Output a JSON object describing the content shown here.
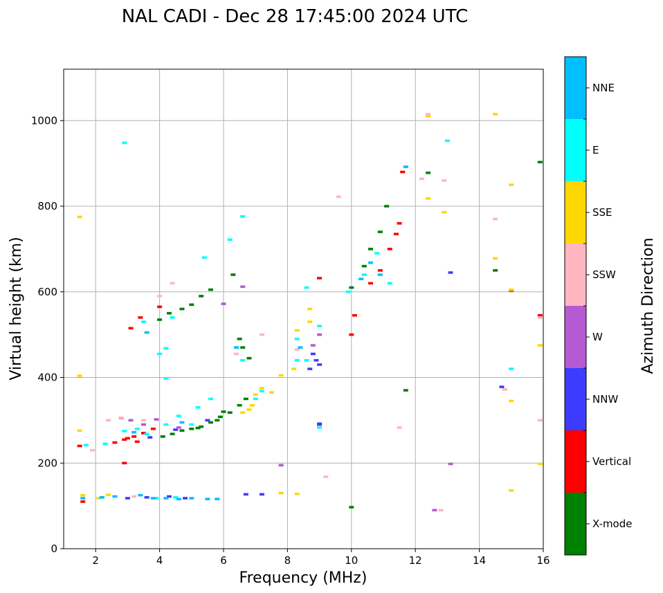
{
  "chart_data": {
    "type": "scatter",
    "title": "NAL CADI - Dec 28 17:45:00 2024 UTC",
    "xlabel": "Frequency (MHz)",
    "ylabel": "Virtual height (km)",
    "xlim": [
      1,
      16
    ],
    "ylim": [
      0,
      1120
    ],
    "xticks": [
      2,
      4,
      6,
      8,
      10,
      12,
      14,
      16
    ],
    "yticks": [
      0,
      200,
      400,
      600,
      800,
      1000
    ],
    "xtick_labels": [
      "2",
      "4",
      "6",
      "8",
      "10",
      "12",
      "14",
      "16"
    ],
    "ytick_labels": [
      "0",
      "200",
      "400",
      "600",
      "800",
      "1000"
    ],
    "grid": true,
    "colorbar": {
      "label": "Azimuth Direction",
      "categories": [
        "X-mode",
        "Vertical",
        "NNW",
        "W",
        "SSW",
        "SSE",
        "E",
        "NNE"
      ],
      "colors": [
        "#008000",
        "#ff0000",
        "#3c3cff",
        "#b45ad2",
        "#ffb6c1",
        "#ffd700",
        "#00ffff",
        "#00bfff"
      ]
    },
    "series": [
      {
        "name": "X-mode",
        "points": [
          [
            4.1,
            262
          ],
          [
            4.4,
            268
          ],
          [
            4.7,
            276
          ],
          [
            5.0,
            280
          ],
          [
            5.3,
            285
          ],
          [
            5.6,
            295
          ],
          [
            5.9,
            308
          ],
          [
            6.2,
            318
          ],
          [
            6.5,
            335
          ],
          [
            6.7,
            350
          ],
          [
            4.0,
            535
          ],
          [
            4.3,
            550
          ],
          [
            4.7,
            560
          ],
          [
            5.0,
            570
          ],
          [
            5.3,
            590
          ],
          [
            5.6,
            605
          ],
          [
            6.3,
            640
          ],
          [
            6.5,
            490
          ],
          [
            6.6,
            470
          ],
          [
            6.8,
            445
          ],
          [
            10.0,
            97
          ],
          [
            10.0,
            610
          ],
          [
            10.4,
            660
          ],
          [
            10.6,
            700
          ],
          [
            10.9,
            740
          ],
          [
            11.1,
            800
          ],
          [
            11.7,
            370
          ],
          [
            12.4,
            878
          ],
          [
            14.5,
            650
          ],
          [
            15.9,
            903
          ],
          [
            6.0,
            320
          ],
          [
            5.8,
            300
          ],
          [
            5.2,
            282
          ]
        ]
      },
      {
        "name": "Vertical",
        "points": [
          [
            1.5,
            240
          ],
          [
            1.6,
            110
          ],
          [
            2.6,
            248
          ],
          [
            2.9,
            255
          ],
          [
            3.2,
            262
          ],
          [
            3.5,
            270
          ],
          [
            3.8,
            280
          ],
          [
            3.1,
            515
          ],
          [
            3.4,
            540
          ],
          [
            4.0,
            565
          ],
          [
            2.9,
            200
          ],
          [
            9.0,
            632
          ],
          [
            10.0,
            500
          ],
          [
            10.1,
            545
          ],
          [
            10.6,
            620
          ],
          [
            10.9,
            650
          ],
          [
            11.2,
            700
          ],
          [
            11.4,
            735
          ],
          [
            11.5,
            760
          ],
          [
            11.6,
            880
          ],
          [
            15.0,
            603
          ],
          [
            15.9,
            545
          ],
          [
            9.0,
            290
          ],
          [
            3.3,
            250
          ],
          [
            3.0,
            258
          ]
        ]
      },
      {
        "name": "NNW",
        "points": [
          [
            3.0,
            118
          ],
          [
            3.6,
            120
          ],
          [
            4.3,
            122
          ],
          [
            4.8,
            118
          ],
          [
            6.7,
            127
          ],
          [
            7.2,
            127
          ],
          [
            8.7,
            420
          ],
          [
            8.9,
            440
          ],
          [
            9.0,
            292
          ],
          [
            9.0,
            430
          ],
          [
            3.7,
            260
          ],
          [
            4.5,
            278
          ],
          [
            13.1,
            645
          ],
          [
            14.7,
            378
          ],
          [
            5.5,
            300
          ],
          [
            8.8,
            455
          ]
        ]
      },
      {
        "name": "W",
        "points": [
          [
            3.1,
            300
          ],
          [
            3.5,
            290
          ],
          [
            3.9,
            302
          ],
          [
            6.0,
            572
          ],
          [
            6.6,
            612
          ],
          [
            7.8,
            195
          ],
          [
            8.8,
            475
          ],
          [
            9.0,
            500
          ],
          [
            12.6,
            90
          ],
          [
            13.1,
            198
          ],
          [
            2.8,
            305
          ],
          [
            4.6,
            283
          ]
        ]
      },
      {
        "name": "SSW",
        "points": [
          [
            1.9,
            230
          ],
          [
            2.4,
            300
          ],
          [
            2.8,
            306
          ],
          [
            4.0,
            590
          ],
          [
            4.4,
            620
          ],
          [
            6.4,
            455
          ],
          [
            7.2,
            500
          ],
          [
            9.2,
            168
          ],
          [
            9.6,
            822
          ],
          [
            11.5,
            283
          ],
          [
            12.2,
            864
          ],
          [
            12.4,
            1015
          ],
          [
            12.9,
            860
          ],
          [
            12.8,
            90
          ],
          [
            14.5,
            770
          ],
          [
            14.8,
            372
          ],
          [
            15.9,
            300
          ],
          [
            15.9,
            540
          ],
          [
            3.2,
            122
          ],
          [
            3.5,
            300
          ],
          [
            8.3,
            465
          ]
        ]
      },
      {
        "name": "SSE",
        "points": [
          [
            1.5,
            276
          ],
          [
            1.5,
            404
          ],
          [
            1.5,
            775
          ],
          [
            1.6,
            125
          ],
          [
            2.1,
            118
          ],
          [
            2.4,
            126
          ],
          [
            6.9,
            335
          ],
          [
            7.0,
            360
          ],
          [
            7.2,
            375
          ],
          [
            7.5,
            365
          ],
          [
            7.8,
            405
          ],
          [
            7.8,
            130
          ],
          [
            8.3,
            128
          ],
          [
            8.3,
            510
          ],
          [
            8.7,
            530
          ],
          [
            8.7,
            560
          ],
          [
            12.4,
            818
          ],
          [
            12.4,
            1010
          ],
          [
            12.9,
            786
          ],
          [
            14.5,
            678
          ],
          [
            14.5,
            1015
          ],
          [
            15.0,
            136
          ],
          [
            15.0,
            345
          ],
          [
            15.0,
            850
          ],
          [
            15.0,
            605
          ],
          [
            15.9,
            475
          ],
          [
            15.9,
            198
          ],
          [
            6.6,
            318
          ],
          [
            6.8,
            325
          ],
          [
            8.2,
            420
          ]
        ]
      },
      {
        "name": "E",
        "points": [
          [
            1.7,
            242
          ],
          [
            2.3,
            245
          ],
          [
            2.9,
            275
          ],
          [
            3.3,
            280
          ],
          [
            3.6,
            268
          ],
          [
            4.2,
            290
          ],
          [
            4.6,
            310
          ],
          [
            5.2,
            330
          ],
          [
            5.6,
            350
          ],
          [
            5.0,
            290
          ],
          [
            2.9,
            948
          ],
          [
            3.5,
            530
          ],
          [
            4.2,
            468
          ],
          [
            4.4,
            540
          ],
          [
            4.0,
            455
          ],
          [
            4.2,
            398
          ],
          [
            6.2,
            722
          ],
          [
            6.6,
            776
          ],
          [
            6.6,
            440
          ],
          [
            7.0,
            350
          ],
          [
            7.2,
            368
          ],
          [
            8.3,
            440
          ],
          [
            8.6,
            440
          ],
          [
            8.3,
            490
          ],
          [
            8.6,
            610
          ],
          [
            9.0,
            520
          ],
          [
            9.0,
            283
          ],
          [
            9.9,
            600
          ],
          [
            10.4,
            640
          ],
          [
            10.8,
            690
          ],
          [
            11.2,
            620
          ],
          [
            13.0,
            953
          ],
          [
            15.0,
            420
          ],
          [
            5.4,
            680
          ],
          [
            3.9,
            118
          ],
          [
            4.5,
            120
          ]
        ]
      },
      {
        "name": "NNE",
        "points": [
          [
            1.6,
            118
          ],
          [
            2.2,
            120
          ],
          [
            2.6,
            122
          ],
          [
            3.4,
            125
          ],
          [
            3.8,
            118
          ],
          [
            4.2,
            118
          ],
          [
            4.6,
            116
          ],
          [
            5.0,
            118
          ],
          [
            5.5,
            116
          ],
          [
            5.8,
            116
          ],
          [
            3.2,
            272
          ],
          [
            4.7,
            295
          ],
          [
            10.3,
            630
          ],
          [
            10.6,
            668
          ],
          [
            11.7,
            892
          ],
          [
            8.4,
            470
          ],
          [
            6.4,
            470
          ],
          [
            3.6,
            505
          ],
          [
            10.9,
            640
          ]
        ]
      }
    ]
  }
}
